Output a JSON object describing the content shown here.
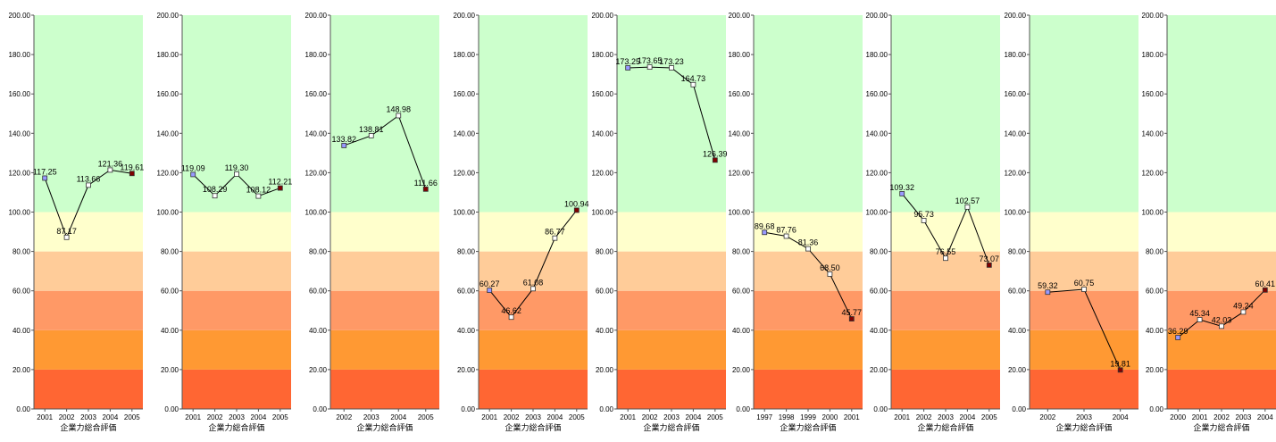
{
  "bands": [
    {
      "from": 0,
      "to": 20,
      "color": "#ff6633"
    },
    {
      "from": 20,
      "to": 40,
      "color": "#ff9933"
    },
    {
      "from": 40,
      "to": 60,
      "color": "#ff9966"
    },
    {
      "from": 60,
      "to": 80,
      "color": "#ffcc99"
    },
    {
      "from": 80,
      "to": 100,
      "color": "#ffffcc"
    },
    {
      "from": 100,
      "to": 200,
      "color": "#ccffcc"
    }
  ],
  "marker_colors": {
    "first": "#9999ff",
    "middle": "#ffffff",
    "last": "#800000"
  },
  "chart_data": [
    {
      "type": "line",
      "categories": [
        "2001",
        "2002",
        "2003",
        "2004",
        "2005"
      ],
      "values": [
        117.25,
        87.17,
        113.66,
        121.36,
        119.61
      ],
      "labels": [
        "117.25",
        "87.17",
        "113.66",
        "121.36",
        "119.61"
      ],
      "xlabel": "企業力総合評価",
      "ylim": [
        0,
        200
      ],
      "yticks": [
        "0.00",
        "20.00",
        "40.00",
        "60.00",
        "80.00",
        "100.00",
        "120.00",
        "140.00",
        "160.00",
        "180.00",
        "200.00"
      ]
    },
    {
      "type": "line",
      "categories": [
        "2001",
        "2002",
        "2003",
        "2004",
        "2005"
      ],
      "values": [
        119.09,
        108.29,
        119.3,
        108.12,
        112.21
      ],
      "labels": [
        "119.09",
        "108.29",
        "119.30",
        "108.12",
        "112.21"
      ],
      "xlabel": "企業力総合評価",
      "ylim": [
        0,
        200
      ],
      "yticks": [
        "0.00",
        "20.00",
        "40.00",
        "60.00",
        "80.00",
        "100.00",
        "120.00",
        "140.00",
        "160.00",
        "180.00",
        "200.00"
      ]
    },
    {
      "type": "line",
      "categories": [
        "2002",
        "2003",
        "2004",
        "2005"
      ],
      "values": [
        133.82,
        138.81,
        148.98,
        111.66
      ],
      "labels": [
        "133.82",
        "138.81",
        "148.98",
        "111.66"
      ],
      "xlabel": "企業力総合評価",
      "ylim": [
        0,
        200
      ],
      "yticks": [
        "0.00",
        "20.00",
        "40.00",
        "60.00",
        "80.00",
        "100.00",
        "120.00",
        "140.00",
        "160.00",
        "180.00",
        "200.00"
      ]
    },
    {
      "type": "line",
      "categories": [
        "2001",
        "2002",
        "2003",
        "2004",
        "2005"
      ],
      "values": [
        60.27,
        46.62,
        61.08,
        86.77,
        100.94
      ],
      "labels": [
        "60.27",
        "46.62",
        "61.08",
        "86.77",
        "100.94"
      ],
      "xlabel": "企業力総合評価",
      "ylim": [
        0,
        200
      ],
      "yticks": [
        "0.00",
        "20.00",
        "40.00",
        "60.00",
        "80.00",
        "100.00",
        "120.00",
        "140.00",
        "160.00",
        "180.00",
        "200.00"
      ]
    },
    {
      "type": "line",
      "categories": [
        "2001",
        "2002",
        "2003",
        "2004",
        "2005"
      ],
      "values": [
        173.25,
        173.65,
        173.23,
        164.73,
        126.39
      ],
      "labels": [
        "173.25",
        "173.65",
        "173.23",
        "164.73",
        "126.39"
      ],
      "xlabel": "企業力総合評価",
      "ylim": [
        0,
        200
      ],
      "yticks": [
        "0.00",
        "20.00",
        "40.00",
        "60.00",
        "80.00",
        "100.00",
        "120.00",
        "140.00",
        "160.00",
        "180.00",
        "200.00"
      ]
    },
    {
      "type": "line",
      "categories": [
        "1997",
        "1998",
        "1999",
        "2000",
        "2001"
      ],
      "values": [
        89.68,
        87.76,
        81.36,
        68.5,
        45.77
      ],
      "labels": [
        "89.68",
        "87.76",
        "81.36",
        "68.50",
        "45.77"
      ],
      "xlabel": "企業力総合評価",
      "ylim": [
        0,
        200
      ],
      "yticks": [
        "0.00",
        "20.00",
        "40.00",
        "60.00",
        "80.00",
        "100.00",
        "120.00",
        "140.00",
        "160.00",
        "180.00",
        "200.00"
      ]
    },
    {
      "type": "line",
      "categories": [
        "2001",
        "2002",
        "2003",
        "2004",
        "2005"
      ],
      "values": [
        109.32,
        95.73,
        76.55,
        102.57,
        73.07
      ],
      "labels": [
        "109.32",
        "95.73",
        "76.55",
        "102.57",
        "73.07"
      ],
      "xlabel": "企業力総合評価",
      "ylim": [
        0,
        200
      ],
      "yticks": [
        "0.00",
        "20.00",
        "40.00",
        "60.00",
        "80.00",
        "100.00",
        "120.00",
        "140.00",
        "160.00",
        "180.00",
        "200.00"
      ]
    },
    {
      "type": "line",
      "categories": [
        "2002",
        "2003",
        "2004"
      ],
      "values": [
        59.32,
        60.75,
        19.81
      ],
      "labels": [
        "59.32",
        "60.75",
        "19.81"
      ],
      "xlabel": "企業力総合評価",
      "ylim": [
        0,
        200
      ],
      "yticks": [
        "0.00",
        "20.00",
        "40.00",
        "60.00",
        "80.00",
        "100.00",
        "120.00",
        "140.00",
        "160.00",
        "180.00",
        "200.00"
      ]
    },
    {
      "type": "line",
      "categories": [
        "2000",
        "2001",
        "2002",
        "2003",
        "2004"
      ],
      "values": [
        36.29,
        45.34,
        42.03,
        49.24,
        60.41
      ],
      "labels": [
        "36.29",
        "45.34",
        "42.03",
        "49.24",
        "60.41"
      ],
      "xlabel": "企業力総合評価",
      "ylim": [
        0,
        200
      ],
      "yticks": [
        "0.00",
        "20.00",
        "40.00",
        "60.00",
        "80.00",
        "100.00",
        "120.00",
        "140.00",
        "160.00",
        "180.00",
        "200.00"
      ]
    }
  ]
}
